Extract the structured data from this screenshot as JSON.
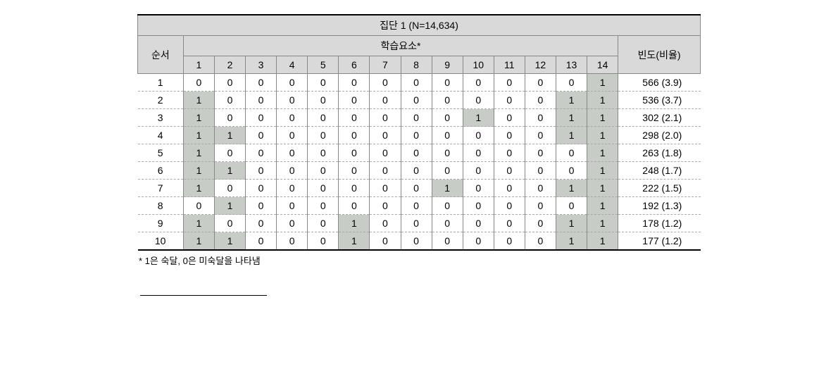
{
  "title": "집단 1 (N=14,634)",
  "header_seq": "순서",
  "header_elem": "학습요소*",
  "header_freq": "빈도(비율)",
  "elem_labels": [
    "1",
    "2",
    "3",
    "4",
    "5",
    "6",
    "7",
    "8",
    "9",
    "10",
    "11",
    "12",
    "13",
    "14"
  ],
  "rows": [
    {
      "seq": "1",
      "v": [
        0,
        0,
        0,
        0,
        0,
        0,
        0,
        0,
        0,
        0,
        0,
        0,
        0,
        1
      ],
      "freq": "566 (3.9)"
    },
    {
      "seq": "2",
      "v": [
        1,
        0,
        0,
        0,
        0,
        0,
        0,
        0,
        0,
        0,
        0,
        0,
        1,
        1
      ],
      "freq": "536 (3.7)"
    },
    {
      "seq": "3",
      "v": [
        1,
        0,
        0,
        0,
        0,
        0,
        0,
        0,
        0,
        1,
        0,
        0,
        1,
        1
      ],
      "freq": "302 (2.1)"
    },
    {
      "seq": "4",
      "v": [
        1,
        1,
        0,
        0,
        0,
        0,
        0,
        0,
        0,
        0,
        0,
        0,
        1,
        1
      ],
      "freq": "298 (2.0)"
    },
    {
      "seq": "5",
      "v": [
        1,
        0,
        0,
        0,
        0,
        0,
        0,
        0,
        0,
        0,
        0,
        0,
        0,
        1
      ],
      "freq": "263 (1.8)"
    },
    {
      "seq": "6",
      "v": [
        1,
        1,
        0,
        0,
        0,
        0,
        0,
        0,
        0,
        0,
        0,
        0,
        0,
        1
      ],
      "freq": "248 (1.7)"
    },
    {
      "seq": "7",
      "v": [
        1,
        0,
        0,
        0,
        0,
        0,
        0,
        0,
        1,
        0,
        0,
        0,
        1,
        1
      ],
      "freq": "222 (1.5)"
    },
    {
      "seq": "8",
      "v": [
        0,
        1,
        0,
        0,
        0,
        0,
        0,
        0,
        0,
        0,
        0,
        0,
        0,
        1
      ],
      "freq": "192 (1.3)"
    },
    {
      "seq": "9",
      "v": [
        1,
        0,
        0,
        0,
        0,
        1,
        0,
        0,
        0,
        0,
        0,
        0,
        1,
        1
      ],
      "freq": "178 (1.2)"
    },
    {
      "seq": "10",
      "v": [
        1,
        1,
        0,
        0,
        0,
        1,
        0,
        0,
        0,
        0,
        0,
        0,
        1,
        1
      ],
      "freq": "177 (1.2)"
    }
  ],
  "footnote": "* 1은 숙달, 0은 미숙달을 나타냄",
  "colors": {
    "header_bg": "#d9d9d9",
    "shade_bg": "#c7ccc7",
    "border": "#888888",
    "dash": "#aaaaaa",
    "solid": "#000000"
  }
}
